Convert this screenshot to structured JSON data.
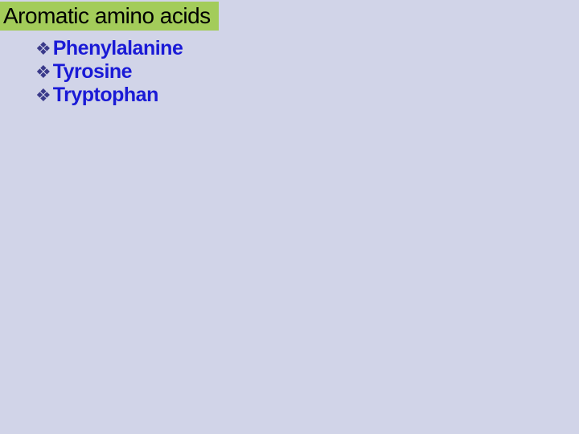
{
  "slide": {
    "title": "Aromatic amino acids",
    "title_bg_color": "#a3cc5a",
    "title_text_color": "#000000",
    "background_color": "#d1d4e8",
    "bullet_glyph": "❖",
    "bullet_color": "#3a3a8a",
    "item_text_color": "#1a1ad6",
    "items": [
      {
        "label": "Phenylalanine"
      },
      {
        "label": "Tyrosine"
      },
      {
        "label": "Tryptophan"
      }
    ]
  }
}
